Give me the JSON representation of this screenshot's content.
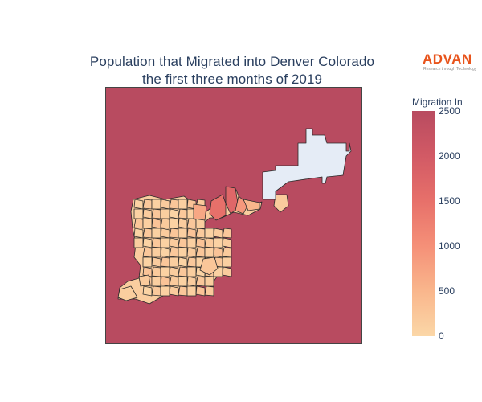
{
  "figure": {
    "title_line_1": "Population that Migrated into Denver Colorado",
    "title_line_2": "the first three months of 2019"
  },
  "logo": {
    "name": "ADVAN",
    "tagline": "Research through Technology"
  },
  "colorbar": {
    "title": "Migration In",
    "range": [
      0,
      2500
    ],
    "ticks": [
      {
        "value": 2500,
        "label": "2500"
      },
      {
        "value": 2000,
        "label": "2000"
      },
      {
        "value": 1500,
        "label": "1500"
      },
      {
        "value": 1000,
        "label": "1000"
      },
      {
        "value": 500,
        "label": "500"
      },
      {
        "value": 0,
        "label": "0"
      }
    ],
    "colorscale": [
      "#fbd7a7",
      "#f9b68c",
      "#f59078",
      "#e7706a",
      "#d25a65",
      "#b84b60"
    ]
  },
  "map": {
    "background_color": "#b84b60",
    "no_data_color": "#e5ecf6",
    "border_color": "#2b2b2b",
    "typical_tract_value": 150
  }
}
